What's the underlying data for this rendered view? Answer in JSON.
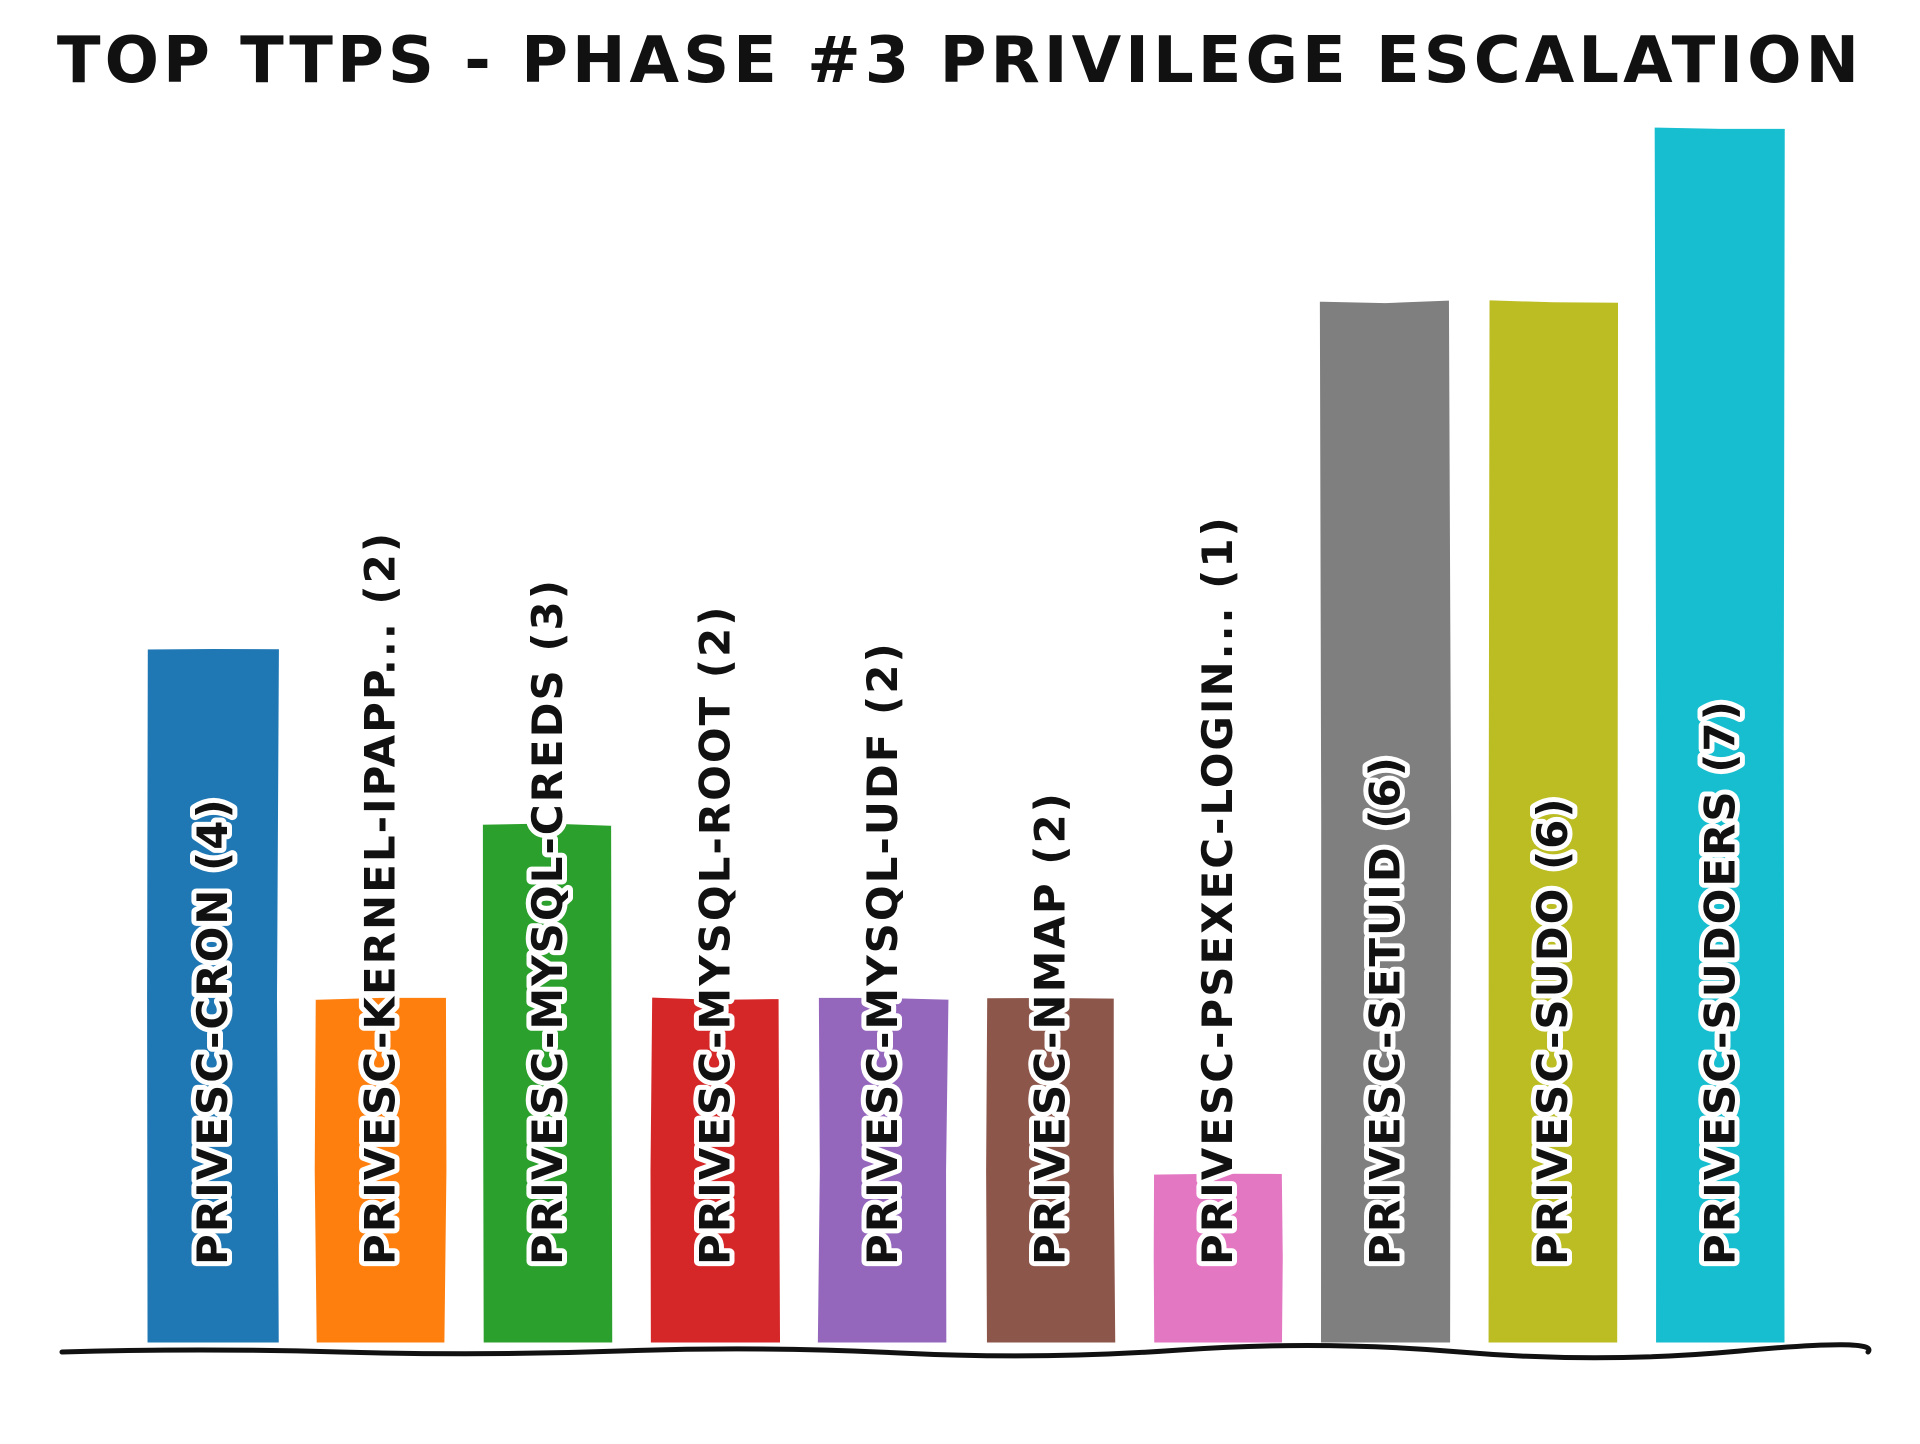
{
  "chart_data": {
    "type": "bar",
    "title": "TOP TTPS - PHASE #3 PRIVILEGE ESCALATION",
    "xlabel": "",
    "ylabel": "",
    "ylim": [
      0,
      7
    ],
    "grid": false,
    "label_orientation": "vertical, inside bars",
    "categories": [
      "PRIVESC-CRON",
      "PRIVESC-KERNEL-IPAPP...",
      "PRIVESC-MYSQL-CREDS",
      "PRIVESC-MYSQL-ROOT",
      "PRIVESC-MYSQL-UDF",
      "PRIVESC-NMAP",
      "PRIVESC-PSEXEC-LOGIN...",
      "PRIVESC-SETUID",
      "PRIVESC-SUDO",
      "PRIVESC-SUDOERS"
    ],
    "values": [
      4,
      2,
      3,
      2,
      2,
      2,
      1,
      6,
      6,
      7
    ],
    "labels": [
      "PRIVESC-CRON (4)",
      "PRIVESC-KERNEL-IPAPP... (2)",
      "PRIVESC-MYSQL-CREDS (3)",
      "PRIVESC-MYSQL-ROOT (2)",
      "PRIVESC-MYSQL-UDF (2)",
      "PRIVESC-NMAP (2)",
      "PRIVESC-PSEXEC-LOGIN... (1)",
      "PRIVESC-SETUID (6)",
      "PRIVESC-SUDO (6)",
      "PRIVESC-SUDOERS (7)"
    ],
    "colors": [
      "#1f77b4",
      "#ff7f0e",
      "#2ca02c",
      "#d62728",
      "#9467bd",
      "#8c564b",
      "#e377c2",
      "#7f7f7f",
      "#bcbd22",
      "#17becf"
    ]
  }
}
